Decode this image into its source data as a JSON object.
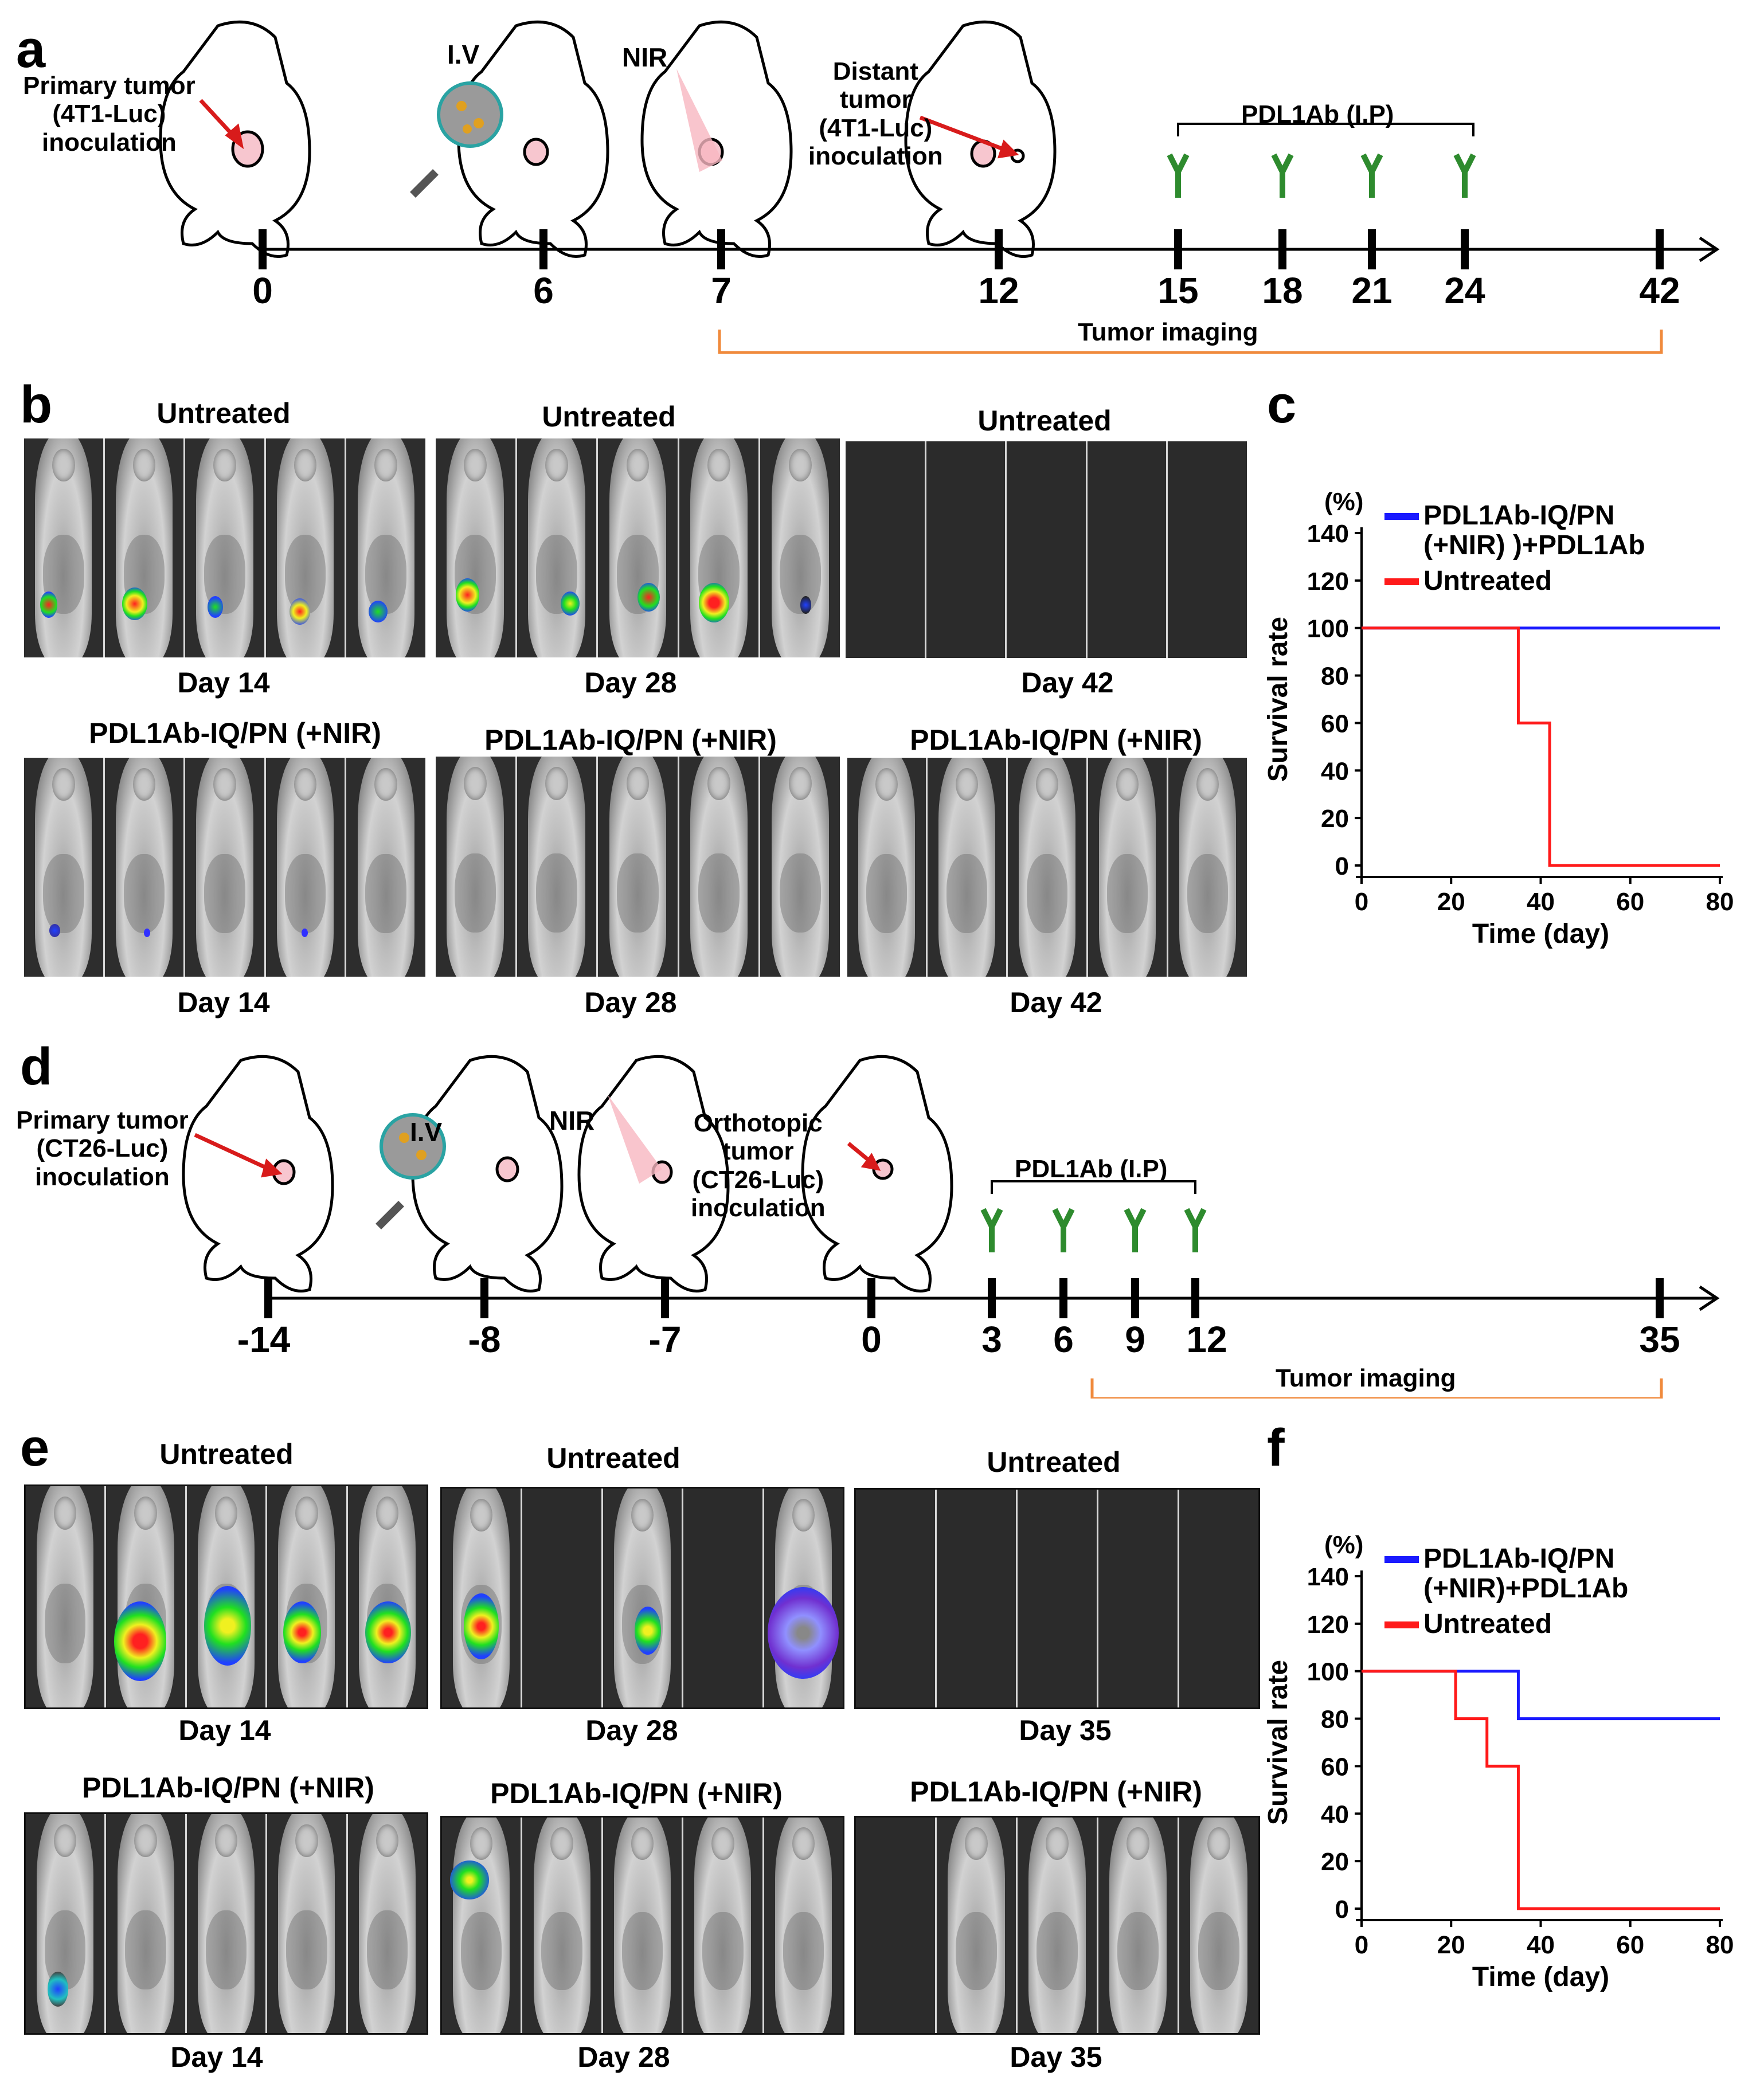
{
  "panel_labels": {
    "a": "a",
    "b": "b",
    "c": "c",
    "d": "d",
    "e": "e",
    "f": "f"
  },
  "colors": {
    "timeline_orange": "#f08a3c",
    "antibody_green": "#2e8b2e",
    "treated_blue": "#1a1aff",
    "untreated_red": "#ff1a1a"
  },
  "timeline_a": {
    "captions": {
      "primary": "Primary tumor\n(4T1-Luc)\ninoculation",
      "iv": "I.V",
      "nir": "NIR",
      "distant": "Distant\ntumor\n(4T1-Luc)\ninoculation",
      "pdl1ab": "PDL1Ab (I.P)",
      "imaging": "Tumor imaging"
    },
    "ticks": [
      "0",
      "6",
      "7",
      "12",
      "15",
      "18",
      "21",
      "24",
      "42"
    ]
  },
  "timeline_d": {
    "captions": {
      "primary": "Primary tumor\n(CT26-Luc)\ninoculation",
      "iv": "I.V",
      "nir": "NIR",
      "orthotopic": "Orthotopic\ntumor\n(CT26-Luc)\ninoculation",
      "pdl1ab": "PDL1Ab (I.P)",
      "imaging": "Tumor imaging"
    },
    "ticks": [
      "-14",
      "-8",
      "-7",
      "0",
      "3",
      "6",
      "9",
      "12",
      "35"
    ]
  },
  "panel_b": {
    "top_titles": [
      "Untreated",
      "Untreated",
      "Untreated"
    ],
    "top_days": [
      "Day 14",
      "Day 28",
      "Day 42"
    ],
    "bottom_titles": [
      "PDL1Ab-IQ/PN (+NIR)",
      "PDL1Ab-IQ/PN (+NIR)",
      "PDL1Ab-IQ/PN (+NIR)"
    ],
    "bottom_days": [
      "Day 14",
      "Day 28",
      "Day 42"
    ]
  },
  "panel_e": {
    "top_titles": [
      "Untreated",
      "Untreated",
      "Untreated"
    ],
    "top_days": [
      "Day 14",
      "Day 28",
      "Day 35"
    ],
    "bottom_titles": [
      "PDL1Ab-IQ/PN (+NIR)",
      "PDL1Ab-IQ/PN (+NIR)",
      "PDL1Ab-IQ/PN (+NIR)"
    ],
    "bottom_days": [
      "Day 14",
      "Day 28",
      "Day 35"
    ]
  },
  "chart_data": [
    {
      "panel": "c",
      "type": "line",
      "step": true,
      "title": "",
      "xlabel": "Time (day)",
      "ylabel": "Survival rate",
      "yunit": "(%)",
      "xlim": [
        0,
        80
      ],
      "ylim": [
        0,
        140
      ],
      "xticks": [
        0,
        20,
        40,
        60,
        80
      ],
      "yticks": [
        0,
        20,
        40,
        60,
        80,
        100,
        120,
        140
      ],
      "legend": "top-right",
      "series": [
        {
          "name": "PDL1Ab-IQ/PN\n(+NIR) )+PDL1Ab",
          "color": "#1a1aff",
          "x": [
            0,
            80
          ],
          "y": [
            100,
            100
          ]
        },
        {
          "name": "Untreated",
          "color": "#ff1a1a",
          "x": [
            0,
            35,
            35,
            42,
            42,
            80
          ],
          "y": [
            100,
            100,
            60,
            60,
            0,
            0
          ]
        }
      ]
    },
    {
      "panel": "f",
      "type": "line",
      "step": true,
      "title": "",
      "xlabel": "Time (day)",
      "ylabel": "Survival rate",
      "yunit": "(%)",
      "xlim": [
        0,
        80
      ],
      "ylim": [
        0,
        140
      ],
      "xticks": [
        0,
        20,
        40,
        60,
        80
      ],
      "yticks": [
        0,
        20,
        40,
        60,
        80,
        100,
        120,
        140
      ],
      "legend": "top-right",
      "series": [
        {
          "name": "PDL1Ab-IQ/PN\n(+NIR)+PDL1Ab",
          "color": "#1a1aff",
          "x": [
            0,
            35,
            35,
            80
          ],
          "y": [
            100,
            100,
            80,
            80
          ]
        },
        {
          "name": "Untreated",
          "color": "#ff1a1a",
          "x": [
            0,
            21,
            21,
            28,
            28,
            35,
            35,
            80
          ],
          "y": [
            100,
            100,
            80,
            80,
            60,
            60,
            0,
            0
          ]
        }
      ]
    }
  ]
}
